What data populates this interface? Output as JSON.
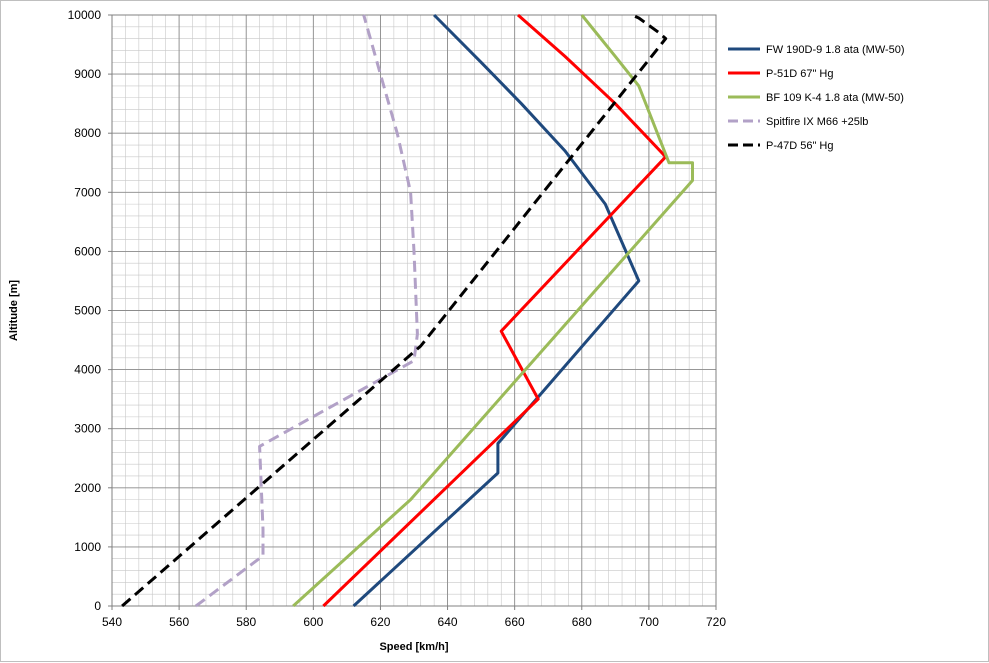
{
  "chart_data": {
    "type": "line",
    "title": "",
    "xlabel": "Speed [km/h]",
    "ylabel": "Altitude [m]",
    "xlim": [
      540,
      720
    ],
    "ylim": [
      0,
      10000
    ],
    "x_major_step": 20,
    "y_major_step": 1000,
    "x_minor_step": 4,
    "y_minor_step": 200,
    "grid": true,
    "legend_position": "right",
    "x_ticks": [
      "540",
      "560",
      "580",
      "600",
      "620",
      "640",
      "660",
      "680",
      "700",
      "720"
    ],
    "y_ticks": [
      "0",
      "1000",
      "2000",
      "3000",
      "4000",
      "5000",
      "6000",
      "7000",
      "8000",
      "9000",
      "10000"
    ],
    "series": [
      {
        "name": "FW 190D-9 1.8 ata (MW-50)",
        "color": "#1f497d",
        "dash": "solid",
        "points": [
          [
            612,
            0
          ],
          [
            655,
            2250
          ],
          [
            655,
            2750
          ],
          [
            697,
            5500
          ],
          [
            687,
            6800
          ],
          [
            675,
            7700
          ],
          [
            662,
            8500
          ],
          [
            650,
            9200
          ],
          [
            636,
            10000
          ]
        ]
      },
      {
        "name": "P-51D 67\" Hg",
        "color": "#ff0000",
        "dash": "solid",
        "points": [
          [
            603,
            0
          ],
          [
            667,
            3500
          ],
          [
            656,
            4650
          ],
          [
            705,
            7600
          ],
          [
            690,
            8500
          ],
          [
            675,
            9300
          ],
          [
            661,
            10000
          ]
        ]
      },
      {
        "name": "BF 109 K-4 1.8 ata  (MW-50)",
        "color": "#9bbb59",
        "dash": "solid",
        "points": [
          [
            594,
            0
          ],
          [
            629,
            1800
          ],
          [
            713,
            7200
          ],
          [
            713,
            7500
          ],
          [
            706,
            7500
          ],
          [
            697,
            8800
          ],
          [
            690,
            9300
          ],
          [
            680,
            10000
          ]
        ]
      },
      {
        "name": "Spitfire IX M66 +25lb",
        "color": "#b2a1c7",
        "dash": "dashed",
        "points": [
          [
            565,
            0
          ],
          [
            585,
            850
          ],
          [
            585,
            1300
          ],
          [
            584,
            2700
          ],
          [
            603,
            3300
          ],
          [
            630,
            4150
          ],
          [
            631,
            4600
          ],
          [
            630,
            6000
          ],
          [
            629,
            7000
          ],
          [
            625,
            8000
          ],
          [
            620,
            9000
          ],
          [
            617,
            9600
          ],
          [
            615,
            10000
          ]
        ]
      },
      {
        "name": "P-47D 56\" Hg",
        "color": "#000000",
        "dash": "dashed",
        "points": [
          [
            543,
            0
          ],
          [
            632,
            4400
          ],
          [
            705,
            9600
          ],
          [
            703,
            9700
          ],
          [
            697,
            9950
          ],
          [
            695,
            10000
          ]
        ]
      }
    ]
  }
}
